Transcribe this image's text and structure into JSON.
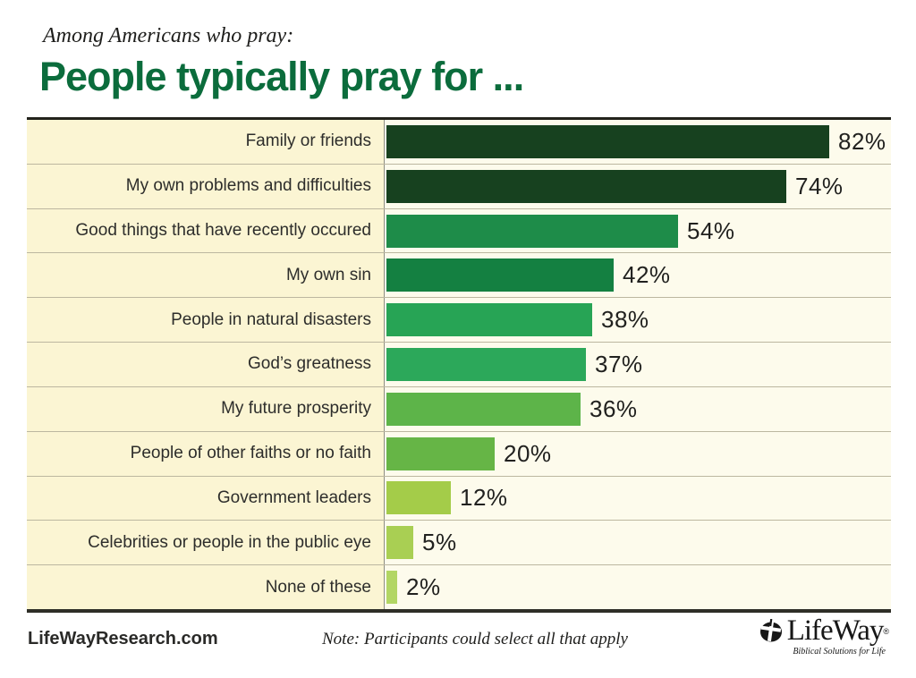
{
  "header": {
    "kicker": "Among Americans who pray:",
    "title": "People typically pray for ..."
  },
  "chart_data": {
    "type": "bar",
    "orientation": "horizontal",
    "title": "People typically pray for ...",
    "subtitle": "Among Americans who pray:",
    "categories": [
      "Family or friends",
      "My own problems and difficulties",
      "Good things that have recently occured",
      "My own sin",
      "People in natural disasters",
      "God’s greatness",
      "My future prosperity",
      "People of other faiths or no faith",
      "Government leaders",
      "Celebrities or people in the public eye",
      "None of these"
    ],
    "values": [
      82,
      74,
      54,
      42,
      38,
      37,
      36,
      20,
      12,
      5,
      2
    ],
    "value_suffix": "%",
    "bar_colors": [
      "#17411f",
      "#17411f",
      "#1e8c49",
      "#148041",
      "#27a455",
      "#2ca85a",
      "#5db449",
      "#66b546",
      "#a4cc49",
      "#a9cf53",
      "#b2d664"
    ],
    "xlim": [
      0,
      93
    ],
    "grid": false,
    "legend": false,
    "label_panel_bg": "#fbf5d3",
    "plot_bg": "#fdfbec",
    "note": "Note: Participants could select all that apply"
  },
  "footer": {
    "website": "LifeWayResearch.com",
    "note": "Note: Participants could select all that apply",
    "logo": {
      "name": "LifeWay",
      "registered_mark": "®",
      "tagline": "Biblical Solutions for Life"
    }
  },
  "colors": {
    "title_green": "#0b6c3c",
    "chart_top_border": "#23231c",
    "chart_bottom_border": "#2e2e27",
    "row_separator": "#bcb7a0",
    "divider": "#8d8d82"
  }
}
